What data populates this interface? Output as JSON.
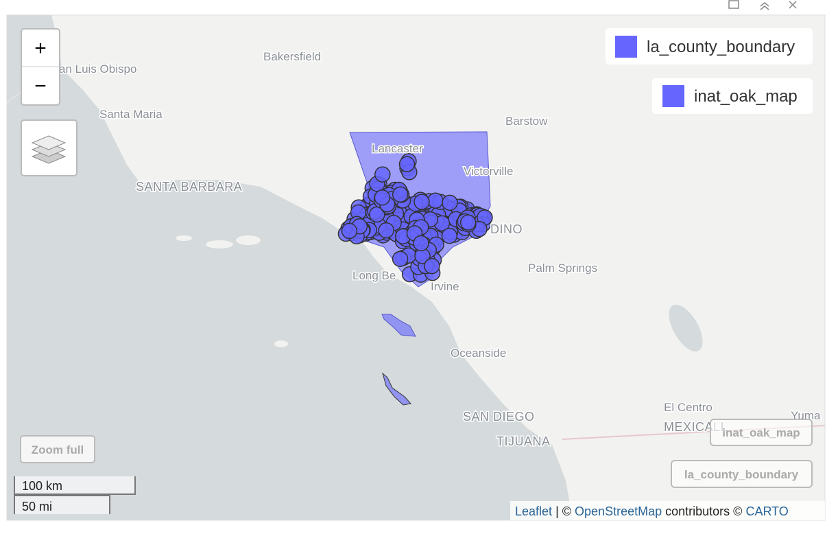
{
  "map": {
    "place_labels": [
      "Bakersfield",
      "an Luis Obispo",
      "Santa Maria",
      "SANTA BARBARA",
      "Lancaster",
      "Victorville",
      "Barstow",
      "DINO",
      "Palm Springs",
      "Long Be",
      "Irvine",
      "Oceanside",
      "SAN DIEGO",
      "TIJUANA",
      "El Centro",
      "MEXICALI",
      "Yuma"
    ],
    "zoom_controls": {
      "zoom_in": "+",
      "zoom_out": "−"
    },
    "zoom_full": "Zoom full",
    "legend": [
      "la_county_boundary",
      "inat_oak_map"
    ],
    "layer_buttons": [
      "inat_oak_map",
      "la_county_boundary"
    ],
    "scale": {
      "metric": "100 km",
      "imperial": "50 mi"
    },
    "attribution": {
      "leaflet": "Leaflet",
      "separator": "| ©",
      "osm": "OpenStreetMap",
      "contributors": "contributors ©",
      "carto": "CARTO"
    }
  }
}
